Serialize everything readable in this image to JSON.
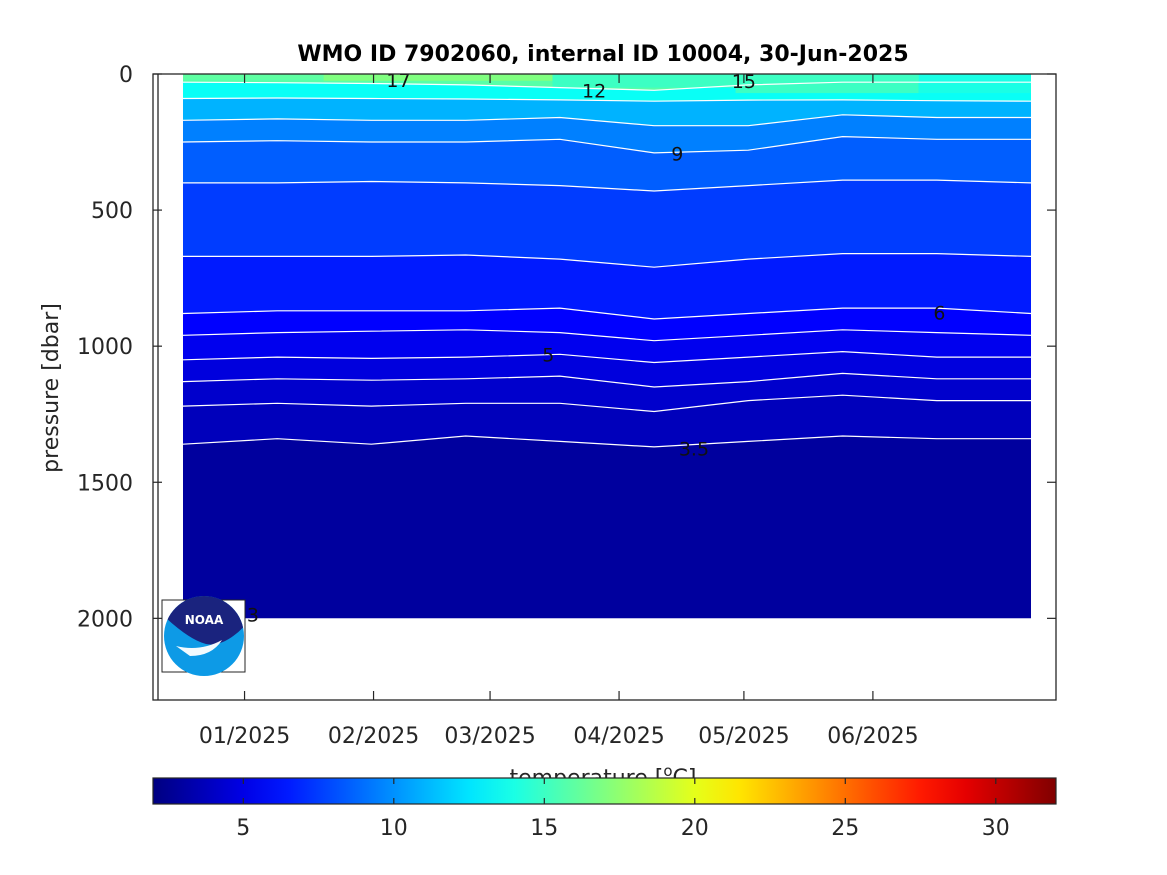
{
  "chart_data": {
    "type": "heatmap",
    "title": "WMO ID 7902060, internal ID 10004, 30-Jun-2025",
    "ylabel": "pressure [dbar]",
    "colorbar_label": "temperature [oC]",
    "xlim": [
      "2024-12-10",
      "2025-07-15"
    ],
    "ylim": [
      2300,
      0
    ],
    "y_reversed": true,
    "yticks": [
      0,
      500,
      1000,
      1500,
      2000
    ],
    "xticks": [
      {
        "date": "2025-01-01",
        "label": "01/2025"
      },
      {
        "date": "2025-02-01",
        "label": "02/2025"
      },
      {
        "date": "2025-03-01",
        "label": "03/2025"
      },
      {
        "date": "2025-04-01",
        "label": "04/2025"
      },
      {
        "date": "2025-05-01",
        "label": "05/2025"
      },
      {
        "date": "2025-06-01",
        "label": "06/2025"
      }
    ],
    "colorbar": {
      "range": [
        2,
        32
      ],
      "colormap": "jet",
      "ticks": [
        5,
        10,
        15,
        20,
        25,
        30
      ]
    },
    "profile_dates": [
      "2024-12-18",
      "2025-01-09",
      "2025-01-31",
      "2025-02-22",
      "2025-03-16",
      "2025-04-07",
      "2025-04-29",
      "2025-05-21",
      "2025-06-12",
      "2025-07-04"
    ],
    "data_pressure_range": [
      0,
      2000
    ],
    "contour_isotherms": [
      {
        "temp": 3.5,
        "depths": [
          1360,
          1340,
          1360,
          1330,
          1350,
          1370,
          1350,
          1330,
          1340,
          1340
        ]
      },
      {
        "temp": 4.0,
        "depths": [
          1220,
          1210,
          1220,
          1210,
          1210,
          1240,
          1200,
          1180,
          1200,
          1200
        ]
      },
      {
        "temp": 4.5,
        "depths": [
          1130,
          1120,
          1125,
          1120,
          1110,
          1150,
          1130,
          1100,
          1120,
          1120
        ]
      },
      {
        "temp": 5.0,
        "depths": [
          1050,
          1040,
          1045,
          1040,
          1030,
          1060,
          1040,
          1020,
          1040,
          1040
        ]
      },
      {
        "temp": 5.5,
        "depths": [
          960,
          950,
          945,
          940,
          950,
          980,
          960,
          940,
          950,
          960
        ]
      },
      {
        "temp": 6.0,
        "depths": [
          880,
          870,
          870,
          870,
          860,
          900,
          880,
          860,
          860,
          880
        ]
      },
      {
        "temp": 7.0,
        "depths": [
          670,
          670,
          670,
          665,
          680,
          710,
          680,
          660,
          660,
          670
        ]
      },
      {
        "temp": 8.0,
        "depths": [
          400,
          400,
          395,
          400,
          410,
          430,
          410,
          390,
          390,
          400
        ]
      },
      {
        "temp": 9.0,
        "depths": [
          250,
          245,
          250,
          250,
          240,
          290,
          280,
          230,
          240,
          240
        ]
      },
      {
        "temp": 10.0,
        "depths": [
          170,
          165,
          170,
          170,
          160,
          190,
          190,
          150,
          160,
          160
        ]
      },
      {
        "temp": 12.0,
        "depths": [
          90,
          88,
          90,
          92,
          95,
          100,
          96,
          95,
          98,
          100
        ]
      },
      {
        "temp": 15.0,
        "depths": [
          30,
          32,
          35,
          40,
          50,
          60,
          40,
          30,
          30,
          30
        ]
      }
    ],
    "surface_layer": [
      {
        "date": "2024-12-18",
        "temp": 16,
        "depth": 20
      },
      {
        "date": "2025-02-22",
        "temp": 17,
        "depth": 25
      },
      {
        "date": "2025-04-07",
        "temp": 15,
        "depth": 50
      },
      {
        "date": "2025-05-21",
        "temp": 15,
        "depth": 70
      },
      {
        "date": "2025-07-04",
        "temp": 14,
        "depth": 70
      }
    ],
    "bottom_layer_temp": 2.9,
    "contour_labels": [
      {
        "text": "17",
        "date": "2025-02-07",
        "p": 25
      },
      {
        "text": "12",
        "date": "2025-03-26",
        "p": 65
      },
      {
        "text": "15",
        "date": "2025-05-01",
        "p": 30
      },
      {
        "text": "9",
        "date": "2025-04-15",
        "p": 295
      },
      {
        "text": "6",
        "date": "2025-06-17",
        "p": 880
      },
      {
        "text": "5",
        "date": "2025-03-15",
        "p": 1035
      },
      {
        "text": "3.5",
        "date": "2025-04-19",
        "p": 1380
      },
      {
        "text": "3",
        "date": "2025-01-03",
        "p": 1990
      }
    ]
  },
  "logo": {
    "text": "NOAA"
  },
  "colors": {
    "isoline": "#ffffff",
    "axis": "#262626"
  }
}
